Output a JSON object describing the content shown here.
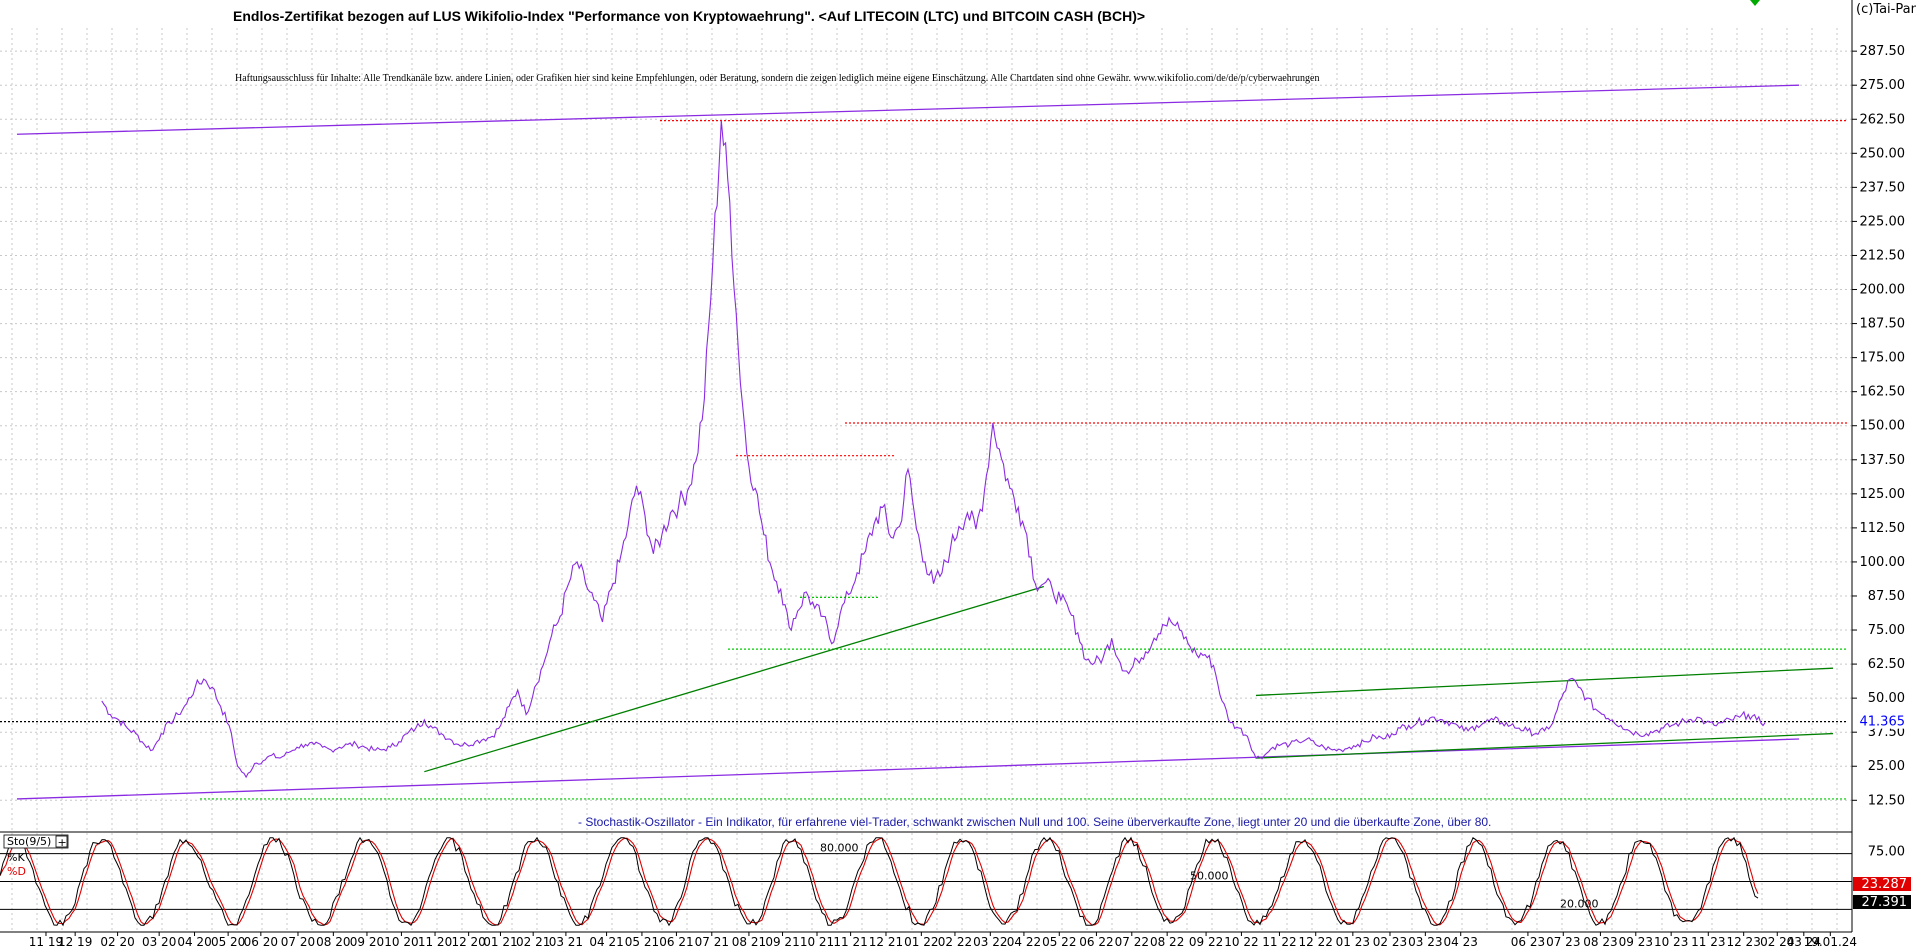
{
  "header": {
    "title": "Endlos-Zertifikat bezogen auf LUS Wikifolio-Index \"Performance von Kryptowaehrung\". <Auf LITECOIN (LTC) und BITCOIN CASH (BCH)>",
    "disclaimer": "Haftungsausschluss für Inhalte: Alle Trendkanäle bzw. andere Linien, oder Grafiken hier sind keine Empfehlungen, oder Beratung, sondern die zeigen lediglich meine eigene Einschätzung. Alle Chartdaten sind ohne Gewähr. www.wikifolio.com/de/de/p/cyberwaehrungen",
    "copyright": "(c)Tai-Pan"
  },
  "oscillator": {
    "description": "- Stochastik-Oszillator - Ein Indikator, für erfahrene viel-Trader, schwankt zwischen Null und 100. Seine überverkaufte Zone, liegt unter 20 und die überkaufte Zone, über 80.",
    "panel_label": "Sto(9/5)",
    "toggle_symbol": "+",
    "k_label": "%K",
    "d_label": "%D",
    "level_labels": [
      "80.000",
      "50.000",
      "20.000"
    ],
    "axis_ticks": [
      "75.00"
    ],
    "k_value": "27.391",
    "d_value": "23.287",
    "colors": {
      "k": "#000000",
      "d": "#e00000"
    }
  },
  "chart_data": {
    "type": "line",
    "title": "Endlos-Zertifikat bezogen auf LUS Wikifolio-Index \"Performance von Kryptowaehrung\". <Auf LITECOIN (LTC) und BITCOIN CASH (BCH)>",
    "xlabel": "",
    "ylabel": "",
    "ylim": [
      6,
      296
    ],
    "y_ticks": [
      "12.50",
      "25.00",
      "37.50",
      "50.00",
      "62.50",
      "75.00",
      "87.50",
      "100.00",
      "112.50",
      "125.00",
      "137.50",
      "150.00",
      "162.50",
      "175.00",
      "187.50",
      "200.00",
      "212.50",
      "225.00",
      "237.50",
      "250.00",
      "262.50",
      "275.00",
      "287.50"
    ],
    "x_tick_labels": [
      "11 19",
      "12 19",
      "02 20",
      "03 20",
      "04 20",
      "05 20",
      "06 20",
      "07 20",
      "08 20",
      "09 20",
      "10 20",
      "11 20",
      "12 20",
      "01 21",
      "02 21",
      "03 21",
      "04 21",
      "05 21",
      "06 21",
      "07 21",
      "08 21",
      "09 21",
      "10 21",
      "11 21",
      "12 21",
      "01 22",
      "02 22",
      "03 22",
      "04 22",
      "05 22",
      "06 22",
      "07 22",
      "08 22",
      "09 22",
      "10 22",
      "11 22",
      "12 22",
      "01 23",
      "02 23",
      "03 23",
      "04 23",
      "06 23",
      "07 23",
      "08 23",
      "09 23",
      "10 23",
      "11 23",
      "12 23",
      "02 24",
      "03 24",
      "19.01.24"
    ],
    "last_value": "41.365",
    "grid": true,
    "legend": "none",
    "colors": {
      "price": "#8a2be2",
      "support": "#008000",
      "resistance_dotted": "#ff0000",
      "support_dotted": "#00cc00",
      "last": "#0000ff"
    },
    "series": [
      {
        "values": [
          [
            0,
            49
          ],
          [
            1,
            44
          ],
          [
            2,
            42
          ],
          [
            3,
            39
          ],
          [
            4,
            37
          ],
          [
            5,
            33
          ],
          [
            6,
            31
          ],
          [
            7,
            37
          ],
          [
            8,
            41
          ],
          [
            9,
            44
          ],
          [
            10,
            48
          ],
          [
            11,
            54
          ],
          [
            12,
            57
          ],
          [
            13,
            54
          ],
          [
            14,
            47
          ],
          [
            15,
            40
          ],
          [
            16,
            25
          ],
          [
            17,
            21
          ],
          [
            18,
            26
          ],
          [
            19,
            27
          ],
          [
            20,
            29
          ],
          [
            21,
            28
          ],
          [
            22,
            30
          ],
          [
            23,
            32
          ],
          [
            24,
            33
          ],
          [
            25,
            33
          ],
          [
            26,
            32
          ],
          [
            27,
            31
          ],
          [
            28,
            32
          ],
          [
            29,
            33
          ],
          [
            30,
            33
          ],
          [
            31,
            32
          ],
          [
            32,
            31
          ],
          [
            33,
            31
          ],
          [
            34,
            32
          ],
          [
            35,
            34
          ],
          [
            36,
            37
          ],
          [
            37,
            39
          ],
          [
            38,
            42
          ],
          [
            39,
            39
          ],
          [
            40,
            37
          ],
          [
            41,
            35
          ],
          [
            42,
            33
          ],
          [
            43,
            33
          ],
          [
            44,
            34
          ],
          [
            45,
            35
          ],
          [
            46,
            36
          ],
          [
            47,
            40
          ],
          [
            48,
            47
          ],
          [
            49,
            53
          ],
          [
            50,
            44
          ],
          [
            51,
            54
          ],
          [
            52,
            62
          ],
          [
            53,
            73
          ],
          [
            54,
            80
          ],
          [
            55,
            92
          ],
          [
            56,
            100
          ],
          [
            57,
            92
          ],
          [
            58,
            86
          ],
          [
            59,
            78
          ],
          [
            60,
            90
          ],
          [
            61,
            100
          ],
          [
            62,
            113
          ],
          [
            63,
            128
          ],
          [
            64,
            117
          ],
          [
            65,
            103
          ],
          [
            66,
            110
          ],
          [
            67,
            118
          ],
          [
            68,
            121
          ],
          [
            69,
            126
          ],
          [
            70,
            137
          ],
          [
            71,
            160
          ],
          [
            72,
            210
          ],
          [
            73,
            262
          ],
          [
            74,
            232
          ],
          [
            75,
            178
          ],
          [
            76,
            140
          ],
          [
            77,
            127
          ],
          [
            78,
            110
          ],
          [
            79,
            97
          ],
          [
            80,
            90
          ],
          [
            81,
            76
          ],
          [
            82,
            82
          ],
          [
            83,
            89
          ],
          [
            84,
            83
          ],
          [
            85,
            80
          ],
          [
            86,
            70
          ],
          [
            87,
            81
          ],
          [
            88,
            88
          ],
          [
            89,
            96
          ],
          [
            90,
            104
          ],
          [
            91,
            114
          ],
          [
            92,
            120
          ],
          [
            93,
            109
          ],
          [
            94,
            113
          ],
          [
            95,
            134
          ],
          [
            96,
            112
          ],
          [
            97,
            100
          ],
          [
            98,
            92
          ],
          [
            99,
            96
          ],
          [
            100,
            105
          ],
          [
            101,
            113
          ],
          [
            102,
            118
          ],
          [
            103,
            112
          ],
          [
            104,
            126
          ],
          [
            105,
            151
          ],
          [
            106,
            138
          ],
          [
            107,
            127
          ],
          [
            108,
            120
          ],
          [
            109,
            110
          ],
          [
            110,
            92
          ],
          [
            111,
            92
          ],
          [
            112,
            90
          ],
          [
            113,
            86
          ],
          [
            114,
            82
          ],
          [
            115,
            74
          ],
          [
            116,
            64
          ],
          [
            117,
            63
          ],
          [
            118,
            65
          ],
          [
            119,
            72
          ],
          [
            120,
            63
          ],
          [
            121,
            59
          ],
          [
            122,
            64
          ],
          [
            123,
            67
          ],
          [
            124,
            72
          ],
          [
            125,
            77
          ],
          [
            126,
            78
          ],
          [
            127,
            75
          ],
          [
            128,
            70
          ],
          [
            129,
            66
          ],
          [
            130,
            66
          ],
          [
            131,
            62
          ],
          [
            132,
            49
          ],
          [
            133,
            41
          ],
          [
            134,
            39
          ],
          [
            135,
            36
          ],
          [
            136,
            28
          ],
          [
            137,
            29
          ],
          [
            138,
            32
          ],
          [
            139,
            33
          ],
          [
            140,
            33
          ],
          [
            141,
            34
          ],
          [
            142,
            35
          ],
          [
            143,
            33
          ],
          [
            144,
            32
          ],
          [
            145,
            31
          ],
          [
            146,
            31
          ],
          [
            147,
            32
          ],
          [
            148,
            33
          ],
          [
            149,
            34
          ],
          [
            150,
            36
          ],
          [
            151,
            35
          ],
          [
            152,
            37
          ],
          [
            153,
            39
          ],
          [
            154,
            40
          ],
          [
            155,
            41
          ],
          [
            156,
            42
          ],
          [
            157,
            43
          ],
          [
            158,
            42
          ],
          [
            159,
            41
          ],
          [
            160,
            39
          ],
          [
            161,
            38
          ],
          [
            162,
            40
          ],
          [
            163,
            41
          ],
          [
            164,
            42
          ],
          [
            165,
            41
          ],
          [
            166,
            40
          ],
          [
            167,
            39
          ],
          [
            168,
            38
          ],
          [
            169,
            37
          ],
          [
            170,
            38
          ],
          [
            171,
            41
          ],
          [
            172,
            50
          ],
          [
            173,
            57
          ],
          [
            174,
            54
          ],
          [
            175,
            50
          ],
          [
            176,
            46
          ],
          [
            177,
            44
          ],
          [
            178,
            42
          ],
          [
            179,
            40
          ],
          [
            180,
            38
          ],
          [
            181,
            37
          ],
          [
            182,
            37
          ],
          [
            183,
            38
          ],
          [
            184,
            39
          ],
          [
            185,
            40
          ],
          [
            186,
            41
          ],
          [
            187,
            42
          ],
          [
            188,
            43
          ],
          [
            189,
            41
          ],
          [
            190,
            40
          ],
          [
            191,
            41
          ],
          [
            192,
            42
          ],
          [
            193,
            43
          ],
          [
            194,
            44
          ],
          [
            195,
            42
          ],
          [
            196,
            41
          ]
        ]
      }
    ],
    "annotations": [
      {
        "kind": "resistance_dotted",
        "y": 262
      },
      {
        "kind": "resistance_dotted",
        "y": 151
      },
      {
        "kind": "resistance_dotted",
        "y": 139
      },
      {
        "kind": "support_dotted",
        "y": 87
      },
      {
        "kind": "support_dotted",
        "y": 68
      },
      {
        "kind": "support_dotted",
        "y": 13
      },
      {
        "kind": "last_dotted",
        "y": 41.365
      }
    ],
    "trendlines": [
      {
        "kind": "upper_channel",
        "from": [
          -10,
          257
        ],
        "to": [
          200,
          275
        ]
      },
      {
        "kind": "lower_channel",
        "from": [
          -10,
          13
        ],
        "to": [
          200,
          35
        ]
      },
      {
        "kind": "support",
        "from": [
          38,
          23
        ],
        "to": [
          111,
          91
        ]
      },
      {
        "kind": "support",
        "from": [
          136,
          51
        ],
        "to": [
          204,
          61
        ]
      },
      {
        "kind": "support",
        "from": [
          136,
          28
        ],
        "to": [
          204,
          37
        ]
      }
    ]
  }
}
